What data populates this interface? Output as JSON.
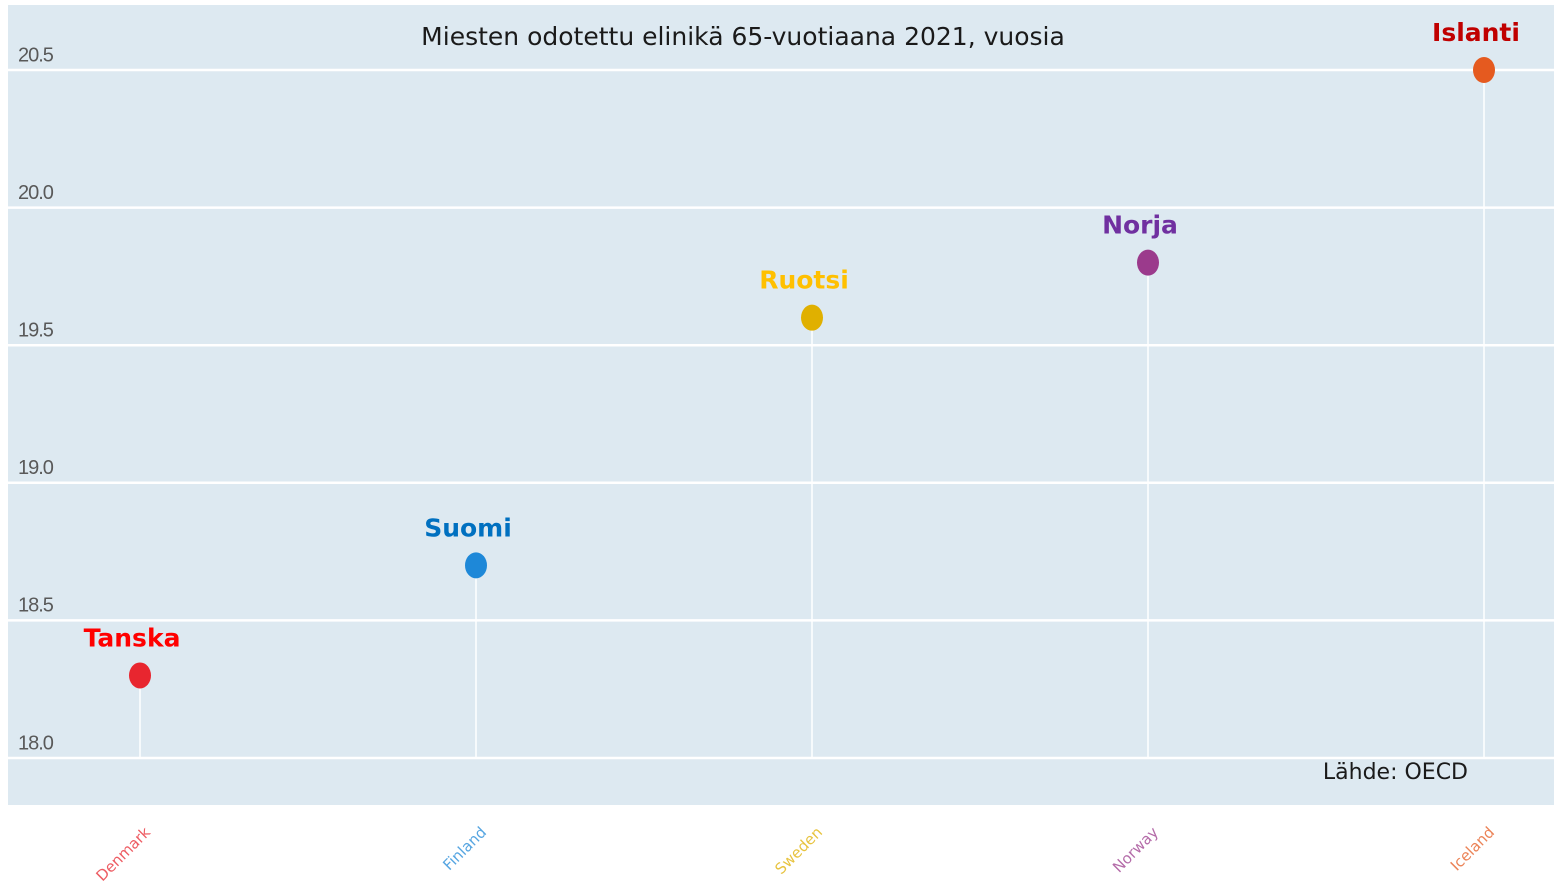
{
  "chart_data": {
    "type": "lollipop",
    "title": "Miesten odotettu elinikä 65-vuotiaana 2021, vuosia",
    "source": "Lähde: OECD",
    "categories": [
      "Denmark",
      "Finland",
      "Sweden",
      "Norway",
      "Iceland"
    ],
    "point_labels": [
      "Tanska",
      "Suomi",
      "Ruotsi",
      "Norja",
      "Islanti"
    ],
    "values": [
      18.3,
      18.7,
      19.6,
      19.8,
      20.5
    ],
    "colors": [
      "#e8262f",
      "#1e88d8",
      "#e0b000",
      "#9b3a8c",
      "#e55a1f"
    ],
    "label_colors": [
      "#ff0000",
      "#0070c0",
      "#ffc000",
      "#7030a0",
      "#c00000"
    ],
    "ylim": [
      18.0,
      20.5
    ],
    "yticks": [
      {
        "value": 18,
        "label": "18.0"
      },
      18.5,
      {
        "value": 19,
        "label": "19.0"
      },
      19.5,
      {
        "value": 20,
        "label": "20.0"
      },
      20.5
    ],
    "grid": true
  }
}
